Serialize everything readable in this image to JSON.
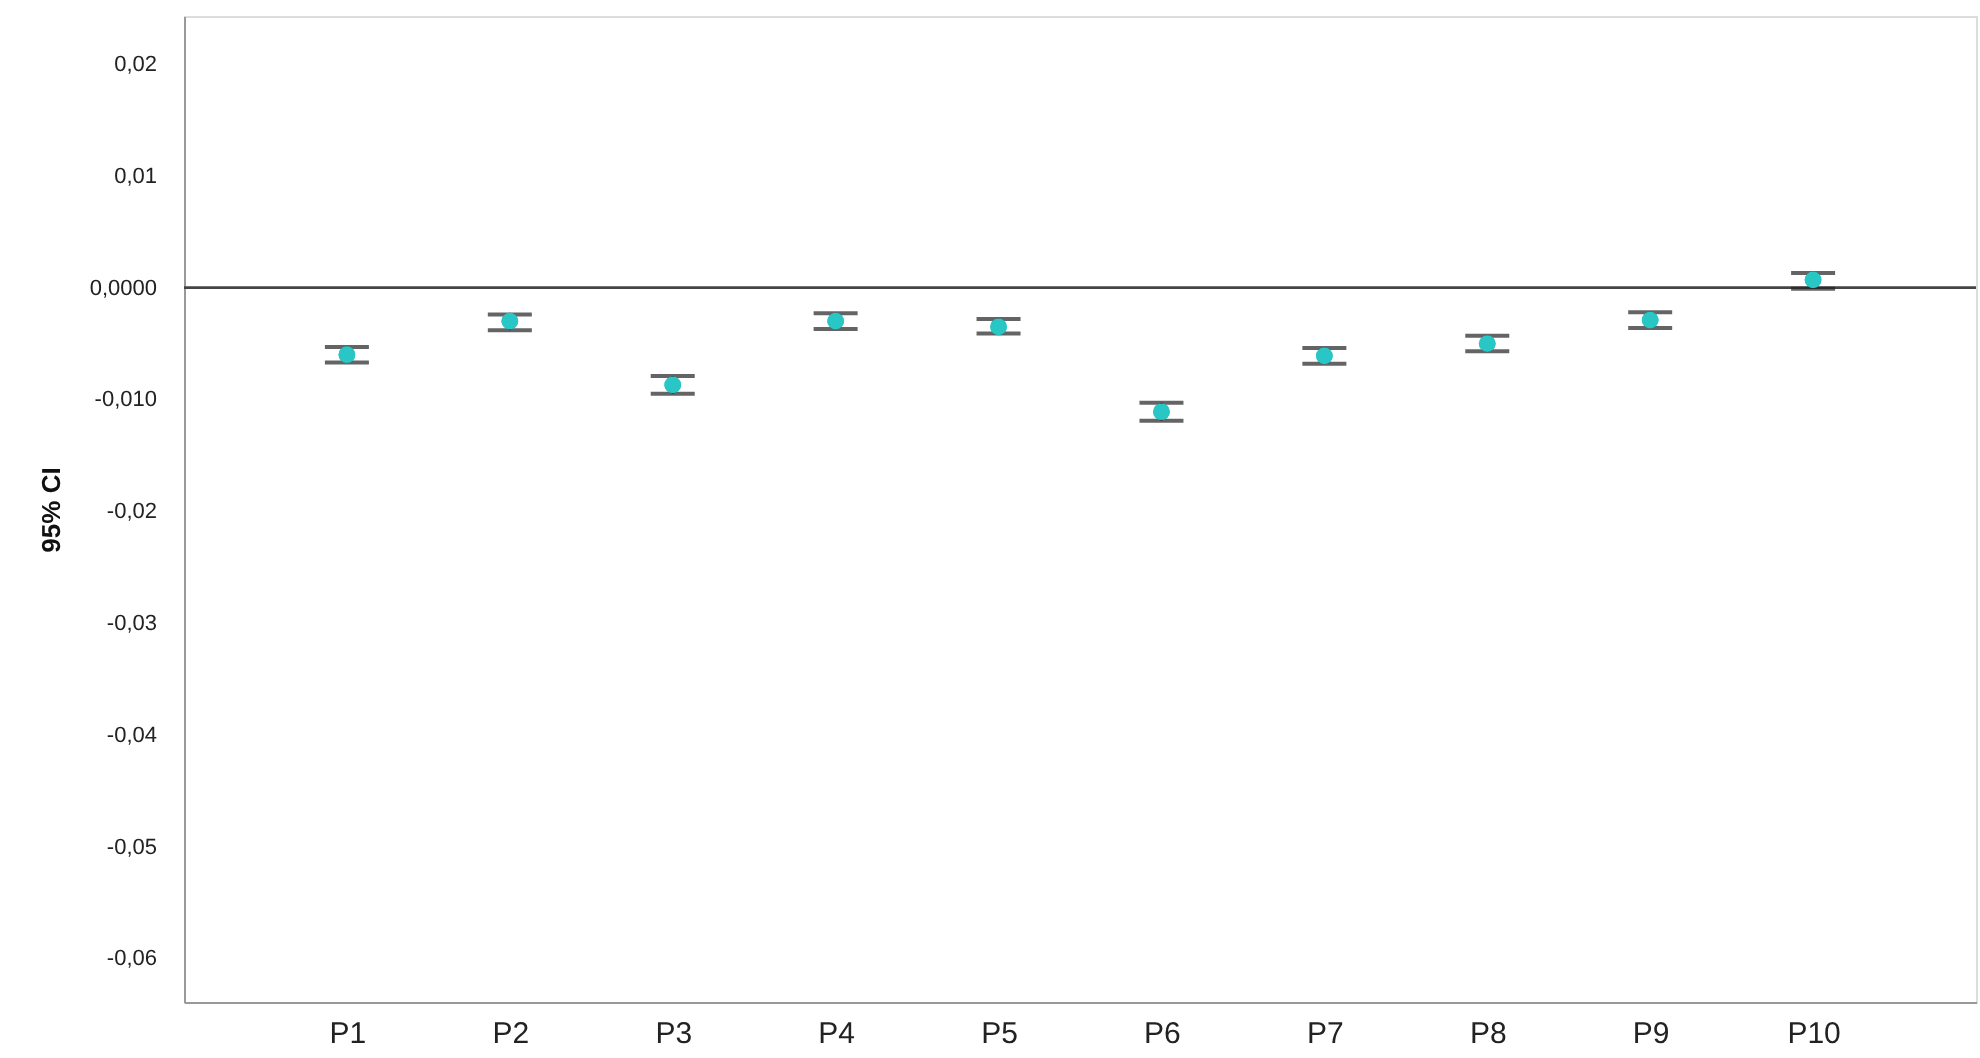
{
  "chart_data": {
    "type": "scatter",
    "ylabel": "95% CI",
    "categories": [
      "P1",
      "P2",
      "P3",
      "P4",
      "P5",
      "P6",
      "P7",
      "P8",
      "P9",
      "P10"
    ],
    "series": [
      {
        "color": "#29c6c6",
        "values": [
          -0.006,
          -0.003,
          -0.0087,
          -0.003,
          -0.0035,
          -0.0111,
          -0.0061,
          -0.005,
          -0.0029,
          0.0007
        ],
        "errors": [
          [
            -0.0067,
            -0.0053
          ],
          [
            -0.0038,
            -0.0024
          ],
          [
            -0.0095,
            -0.0079
          ],
          [
            -0.0037,
            -0.0023
          ],
          [
            -0.0041,
            -0.0028
          ],
          [
            -0.0119,
            -0.0103
          ],
          [
            -0.0068,
            -0.0054
          ],
          [
            -0.0057,
            -0.0043
          ],
          [
            -0.0036,
            -0.0022
          ],
          [
            -0.0001,
            0.0013
          ]
        ]
      }
    ],
    "ylim": [
      -0.0639,
      0.0243
    ],
    "yticks": [
      {
        "value": 0.02,
        "label": "0,02"
      },
      {
        "value": 0.01,
        "label": "0,01"
      },
      {
        "value": 0,
        "label": "0,0000"
      },
      {
        "value": -0.01,
        "label": "-0,010"
      },
      {
        "value": -0.02,
        "label": "-0,02"
      },
      {
        "value": -0.03,
        "label": "-0,03"
      },
      {
        "value": -0.04,
        "label": "-0,04"
      },
      {
        "value": -0.05,
        "label": "-0,05"
      },
      {
        "value": -0.06,
        "label": "-0,06"
      }
    ],
    "ref_lines": [
      {
        "axis": "y",
        "value": 0,
        "color": "#444444"
      }
    ],
    "marker": "circle",
    "grid": false
  }
}
